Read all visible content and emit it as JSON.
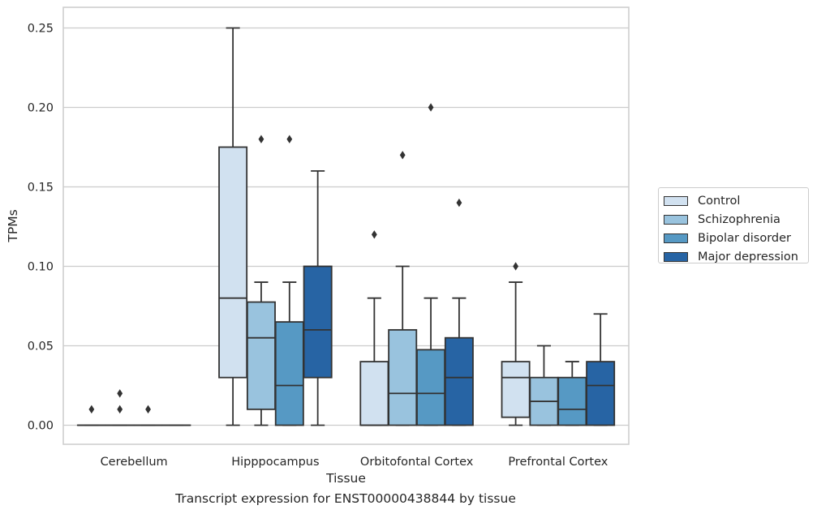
{
  "caption": "Transcript expression for ENST00000438844 by tissue",
  "colors": {
    "Control": "#d1e1f0",
    "Schizophrenia": "#99c3de",
    "Bipolar disorder": "#5699c4",
    "Major depression": "#2764a4",
    "box_edge": "#333333",
    "grid": "#cccccc"
  },
  "chart_data": {
    "type": "box",
    "title": "",
    "xlabel": "Tissue",
    "ylabel": "TPMs",
    "ylim": [
      -0.012,
      0.263
    ],
    "yticks": [
      "0.00",
      "0.05",
      "0.10",
      "0.15",
      "0.20",
      "0.25"
    ],
    "categories": [
      "Cerebellum",
      "Hipppocampus",
      "Orbitofontal Cortex",
      "Prefrontal Cortex"
    ],
    "legend": {
      "placement": "outside-right",
      "labels": [
        "Control",
        "Schizophrenia",
        "Bipolar disorder",
        "Major depression"
      ]
    },
    "grid": "horizontal",
    "series": [
      {
        "name": "Control",
        "boxes": [
          {
            "min": 0,
            "q1": 0,
            "median": 0,
            "q3": 0,
            "max": 0,
            "outliers": [
              0.01
            ]
          },
          {
            "min": 0,
            "q1": 0.03,
            "median": 0.08,
            "q3": 0.175,
            "max": 0.25,
            "outliers": []
          },
          {
            "min": 0,
            "q1": 0,
            "median": 0,
            "q3": 0.04,
            "max": 0.08,
            "outliers": [
              0.12
            ]
          },
          {
            "min": 0,
            "q1": 0.005,
            "median": 0.03,
            "q3": 0.04,
            "max": 0.09,
            "outliers": [
              0.1
            ]
          }
        ]
      },
      {
        "name": "Schizophrenia",
        "boxes": [
          {
            "min": 0,
            "q1": 0,
            "median": 0,
            "q3": 0,
            "max": 0,
            "outliers": [
              0.01,
              0.02
            ]
          },
          {
            "min": 0,
            "q1": 0.01,
            "median": 0.055,
            "q3": 0.0775,
            "max": 0.09,
            "outliers": [
              0.18
            ]
          },
          {
            "min": 0,
            "q1": 0,
            "median": 0.02,
            "q3": 0.06,
            "max": 0.1,
            "outliers": [
              0.17
            ]
          },
          {
            "min": 0,
            "q1": 0,
            "median": 0.015,
            "q3": 0.03,
            "max": 0.05,
            "outliers": []
          }
        ]
      },
      {
        "name": "Bipolar disorder",
        "boxes": [
          {
            "min": 0,
            "q1": 0,
            "median": 0,
            "q3": 0,
            "max": 0,
            "outliers": [
              0.01
            ]
          },
          {
            "min": 0,
            "q1": 0,
            "median": 0.025,
            "q3": 0.065,
            "max": 0.09,
            "outliers": [
              0.18
            ]
          },
          {
            "min": 0,
            "q1": 0,
            "median": 0.02,
            "q3": 0.0475,
            "max": 0.08,
            "outliers": [
              0.2
            ]
          },
          {
            "min": 0,
            "q1": 0,
            "median": 0.01,
            "q3": 0.03,
            "max": 0.04,
            "outliers": []
          }
        ]
      },
      {
        "name": "Major depression",
        "boxes": [
          {
            "min": 0,
            "q1": 0,
            "median": 0,
            "q3": 0,
            "max": 0,
            "outliers": []
          },
          {
            "min": 0,
            "q1": 0.03,
            "median": 0.06,
            "q3": 0.1,
            "max": 0.16,
            "outliers": []
          },
          {
            "min": 0,
            "q1": 0,
            "median": 0.03,
            "q3": 0.055,
            "max": 0.08,
            "outliers": [
              0.14
            ]
          },
          {
            "min": 0,
            "q1": 0,
            "median": 0.025,
            "q3": 0.04,
            "max": 0.07,
            "outliers": []
          }
        ]
      }
    ]
  }
}
